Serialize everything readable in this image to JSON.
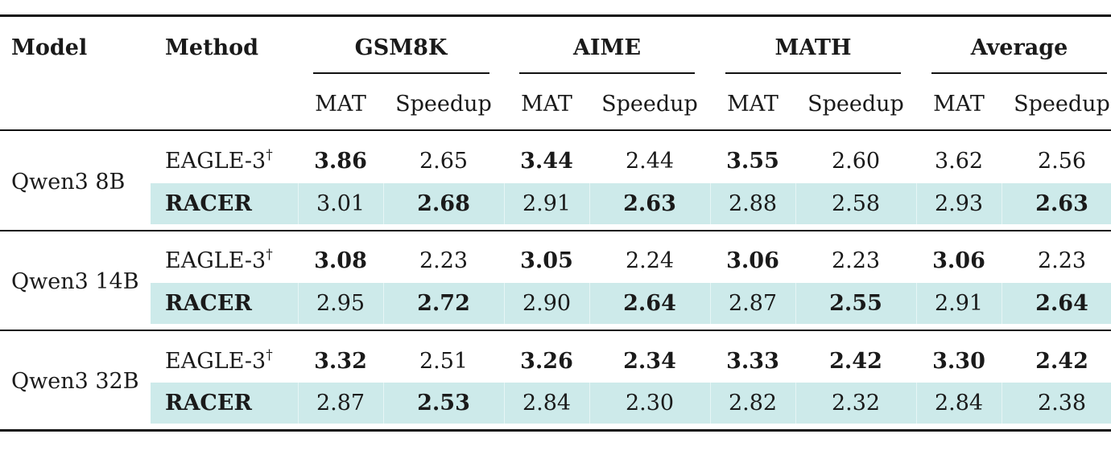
{
  "header": {
    "model": "Model",
    "method": "Method",
    "groups": [
      "GSM8K",
      "AIME",
      "MATH",
      "Average"
    ],
    "sub": [
      "MAT",
      "Speedup"
    ]
  },
  "rows": [
    {
      "model": "Qwen3 8B",
      "eagle": {
        "method": "EAGLE-3",
        "mark": "†",
        "vals": [
          "3.86",
          "2.65",
          "3.44",
          "2.44",
          "3.55",
          "2.60",
          "3.62",
          "2.56"
        ]
      },
      "racer": {
        "method": "RACER",
        "vals": [
          "3.01",
          "2.68",
          "2.91",
          "2.63",
          "2.88",
          "2.58",
          "2.93",
          "2.63"
        ]
      }
    },
    {
      "model": "Qwen3 14B",
      "eagle": {
        "method": "EAGLE-3",
        "mark": "†",
        "vals": [
          "3.08",
          "2.23",
          "3.05",
          "2.24",
          "3.06",
          "2.23",
          "3.06",
          "2.23"
        ]
      },
      "racer": {
        "method": "RACER",
        "vals": [
          "2.95",
          "2.72",
          "2.90",
          "2.64",
          "2.87",
          "2.55",
          "2.91",
          "2.64"
        ]
      }
    },
    {
      "model": "Qwen3 32B",
      "eagle": {
        "method": "EAGLE-3",
        "mark": "†",
        "vals": [
          "3.32",
          "2.51",
          "3.26",
          "2.34",
          "3.33",
          "2.42",
          "3.30",
          "2.42"
        ]
      },
      "racer": {
        "method": "RACER",
        "vals": [
          "2.87",
          "2.53",
          "2.84",
          "2.30",
          "2.82",
          "2.32",
          "2.84",
          "2.38"
        ]
      }
    }
  ],
  "bold_cells": {
    "eagle": [
      [
        0,
        2,
        4
      ],
      [
        0,
        2,
        4,
        6
      ],
      [
        0,
        2,
        3,
        4,
        5,
        6,
        7
      ]
    ],
    "racer": [
      [
        1,
        3,
        7
      ],
      [
        1,
        3,
        5,
        7
      ],
      [
        1
      ]
    ]
  },
  "colors": {
    "highlight_band": "#cdeaea",
    "rule": "#111111"
  }
}
